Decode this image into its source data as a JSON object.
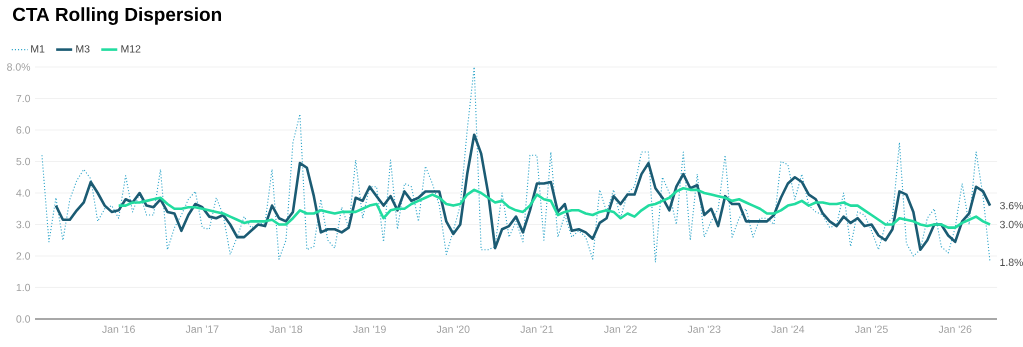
{
  "chart_data": {
    "type": "line",
    "title": "CTA Rolling Dispersion",
    "x": [
      "2015-02",
      "2015-03",
      "2015-04",
      "2015-05",
      "2015-06",
      "2015-07",
      "2015-08",
      "2015-09",
      "2015-10",
      "2015-11",
      "2015-12",
      "2016-01",
      "2016-02",
      "2016-03",
      "2016-04",
      "2016-05",
      "2016-06",
      "2016-07",
      "2016-08",
      "2016-09",
      "2016-10",
      "2016-11",
      "2016-12",
      "2017-01",
      "2017-02",
      "2017-03",
      "2017-04",
      "2017-05",
      "2017-06",
      "2017-07",
      "2017-08",
      "2017-09",
      "2017-10",
      "2017-11",
      "2017-12",
      "2018-01",
      "2018-02",
      "2018-03",
      "2018-04",
      "2018-05",
      "2018-06",
      "2018-07",
      "2018-08",
      "2018-09",
      "2018-10",
      "2018-11",
      "2018-12",
      "2019-01",
      "2019-02",
      "2019-03",
      "2019-04",
      "2019-05",
      "2019-06",
      "2019-07",
      "2019-08",
      "2019-09",
      "2019-10",
      "2019-11",
      "2019-12",
      "2020-01",
      "2020-02",
      "2020-03",
      "2020-04",
      "2020-05",
      "2020-06",
      "2020-07",
      "2020-08",
      "2020-09",
      "2020-10",
      "2020-11",
      "2020-12",
      "2021-01",
      "2021-02",
      "2021-03",
      "2021-04",
      "2021-05",
      "2021-06",
      "2021-07",
      "2021-08",
      "2021-09",
      "2021-10",
      "2021-11",
      "2021-12",
      "2022-01",
      "2022-02",
      "2022-03",
      "2022-04",
      "2022-05",
      "2022-06",
      "2022-07",
      "2022-08",
      "2022-09",
      "2022-10",
      "2022-11",
      "2022-12",
      "2023-01",
      "2023-02",
      "2023-03",
      "2023-04",
      "2023-05",
      "2023-06",
      "2023-07",
      "2023-08",
      "2023-09",
      "2023-10",
      "2023-11",
      "2023-12",
      "2024-01",
      "2024-02",
      "2024-03",
      "2024-04",
      "2024-05",
      "2024-06",
      "2024-07",
      "2024-08",
      "2024-09",
      "2024-10",
      "2024-11",
      "2024-12",
      "2025-01",
      "2025-02",
      "2025-03",
      "2025-04",
      "2025-05",
      "2025-06",
      "2025-07",
      "2025-08",
      "2025-09",
      "2025-10",
      "2025-11",
      "2025-12",
      "2026-01",
      "2026-02",
      "2026-03",
      "2026-04",
      "2026-05",
      "2026-06"
    ],
    "series": [
      {
        "name": "M1",
        "color": "#2aa3c8",
        "line_style": "dotted",
        "values": [
          5.2,
          2.45,
          3.85,
          2.5,
          3.8,
          4.4,
          4.75,
          4.45,
          3.1,
          3.5,
          3.6,
          3.2,
          4.55,
          3.4,
          4.0,
          3.3,
          3.3,
          4.75,
          2.2,
          2.9,
          3.3,
          3.8,
          4.05,
          2.9,
          2.85,
          3.85,
          3.3,
          2.05,
          2.6,
          3.25,
          2.9,
          3.0,
          3.05,
          4.75,
          1.9,
          2.5,
          5.6,
          6.5,
          2.2,
          2.3,
          3.8,
          2.5,
          2.25,
          3.55,
          2.9,
          5.05,
          3.2,
          4.2,
          4.2,
          2.45,
          5.05,
          2.85,
          4.3,
          4.2,
          3.1,
          4.85,
          4.3,
          3.6,
          2.05,
          2.8,
          3.6,
          6.0,
          8.0,
          2.2,
          2.2,
          2.3,
          4.0,
          2.6,
          3.1,
          2.45,
          5.2,
          5.2,
          2.5,
          5.3,
          2.6,
          3.3,
          2.6,
          2.8,
          2.6,
          1.9,
          4.1,
          3.4,
          4.1,
          3.2,
          4.0,
          4.2,
          5.3,
          5.3,
          1.8,
          4.5,
          4.0,
          3.0,
          5.3,
          2.5,
          4.6,
          2.6,
          3.1,
          3.5,
          5.2,
          2.6,
          3.2,
          3.5,
          2.6,
          3.2,
          3.2,
          3.0,
          5.0,
          4.9,
          3.8,
          4.6,
          3.6,
          3.4,
          3.3,
          2.9,
          3.0,
          4.0,
          2.3,
          3.4,
          3.3,
          2.8,
          2.2,
          3.0,
          3.2,
          5.6,
          2.4,
          2.0,
          2.2,
          3.2,
          3.5,
          2.3,
          2.1,
          2.9,
          4.3,
          3.0,
          5.3,
          3.9,
          1.8
        ]
      },
      {
        "name": "M3",
        "color": "#1b5b73",
        "line_style": "solid",
        "values": [
          null,
          null,
          3.6,
          3.15,
          3.15,
          3.45,
          3.7,
          4.35,
          4.0,
          3.6,
          3.4,
          3.45,
          3.8,
          3.7,
          4.0,
          3.6,
          3.55,
          3.8,
          3.4,
          3.35,
          2.8,
          3.3,
          3.65,
          3.55,
          3.25,
          3.2,
          3.3,
          3.0,
          2.6,
          2.6,
          2.8,
          3.0,
          2.95,
          3.6,
          3.2,
          3.1,
          3.4,
          4.95,
          4.8,
          3.9,
          2.75,
          2.85,
          2.85,
          2.75,
          2.9,
          3.85,
          3.75,
          4.2,
          3.9,
          3.6,
          3.9,
          3.45,
          4.05,
          3.75,
          3.85,
          4.05,
          4.05,
          4.05,
          3.1,
          2.7,
          3.0,
          4.6,
          5.85,
          5.25,
          4.0,
          2.25,
          2.85,
          2.95,
          3.25,
          2.75,
          3.45,
          4.3,
          4.3,
          4.35,
          3.4,
          3.65,
          2.8,
          2.85,
          2.75,
          2.55,
          3.05,
          3.2,
          3.9,
          3.65,
          3.95,
          3.95,
          4.6,
          4.95,
          4.15,
          3.85,
          3.45,
          4.2,
          4.6,
          4.15,
          4.25,
          3.3,
          3.5,
          2.95,
          3.9,
          3.65,
          3.65,
          3.1,
          3.1,
          3.1,
          3.1,
          3.3,
          3.85,
          4.3,
          4.5,
          4.35,
          3.95,
          3.8,
          3.35,
          3.1,
          2.95,
          3.25,
          3.05,
          3.2,
          2.95,
          3.0,
          2.65,
          2.5,
          2.85,
          4.05,
          3.95,
          3.4,
          2.2,
          2.5,
          3.0,
          3.0,
          2.65,
          2.45,
          3.1,
          3.35,
          4.2,
          4.05,
          3.6
        ]
      },
      {
        "name": "M12",
        "color": "#22dca0",
        "line_style": "solid",
        "values": [
          null,
          null,
          null,
          null,
          null,
          null,
          null,
          null,
          null,
          null,
          null,
          3.6,
          3.6,
          3.7,
          3.7,
          3.75,
          3.8,
          3.85,
          3.65,
          3.5,
          3.5,
          3.55,
          3.55,
          3.5,
          3.45,
          3.4,
          3.35,
          3.25,
          3.15,
          3.05,
          3.1,
          3.1,
          3.1,
          3.15,
          3.0,
          3.0,
          3.2,
          3.45,
          3.35,
          3.35,
          3.45,
          3.4,
          3.35,
          3.4,
          3.4,
          3.4,
          3.5,
          3.6,
          3.65,
          3.2,
          3.45,
          3.5,
          3.5,
          3.65,
          3.75,
          3.85,
          3.95,
          3.85,
          3.65,
          3.6,
          3.65,
          3.95,
          4.1,
          4.0,
          3.85,
          3.7,
          3.75,
          3.55,
          3.45,
          3.4,
          3.6,
          3.95,
          3.8,
          3.75,
          3.3,
          3.4,
          3.45,
          3.45,
          3.35,
          3.3,
          3.4,
          3.45,
          3.4,
          3.2,
          3.35,
          3.25,
          3.45,
          3.6,
          3.65,
          3.75,
          3.85,
          4.05,
          4.15,
          4.1,
          4.1,
          4.0,
          3.95,
          3.9,
          3.85,
          3.75,
          3.8,
          3.7,
          3.6,
          3.5,
          3.35,
          3.35,
          3.45,
          3.6,
          3.65,
          3.75,
          3.6,
          3.7,
          3.7,
          3.65,
          3.65,
          3.7,
          3.6,
          3.6,
          3.45,
          3.3,
          3.15,
          3.0,
          3.0,
          3.2,
          3.15,
          3.1,
          3.0,
          2.95,
          3.0,
          3.0,
          2.9,
          2.9,
          3.05,
          3.15,
          3.25,
          3.1,
          3.0
        ]
      }
    ],
    "xlim": [
      "2015-01",
      "2026-07"
    ],
    "xticks": [
      {
        "value": "2016-01",
        "label": "Jan '16"
      },
      {
        "value": "2017-01",
        "label": "Jan '17"
      },
      {
        "value": "2018-01",
        "label": "Jan '18"
      },
      {
        "value": "2019-01",
        "label": "Jan '19"
      },
      {
        "value": "2020-01",
        "label": "Jan '20"
      },
      {
        "value": "2021-01",
        "label": "Jan '21"
      },
      {
        "value": "2022-01",
        "label": "Jan '22"
      },
      {
        "value": "2023-01",
        "label": "Jan '23"
      },
      {
        "value": "2024-01",
        "label": "Jan '24"
      },
      {
        "value": "2025-01",
        "label": "Jan '25"
      },
      {
        "value": "2026-01",
        "label": "Jan '26"
      }
    ],
    "ylim": [
      0,
      8
    ],
    "yticks": [
      {
        "value": 0,
        "label": "0.0"
      },
      {
        "value": 1,
        "label": "1.0"
      },
      {
        "value": 2,
        "label": "2.0"
      },
      {
        "value": 3,
        "label": "3.0"
      },
      {
        "value": 4,
        "label": "4.0"
      },
      {
        "value": 5,
        "label": "5.0"
      },
      {
        "value": 6,
        "label": "6.0"
      },
      {
        "value": 7,
        "label": "7.0"
      },
      {
        "value": 8,
        "label": "8.0%"
      }
    ],
    "grid": "y",
    "legend": "top left",
    "annotations": [
      {
        "text": "3.6%",
        "x": "2026-06",
        "y": 3.6
      },
      {
        "text": "3.0%",
        "x": "2026-06",
        "y": 3.0
      },
      {
        "text": "1.8%",
        "x": "2026-06",
        "y": 1.8
      }
    ]
  }
}
